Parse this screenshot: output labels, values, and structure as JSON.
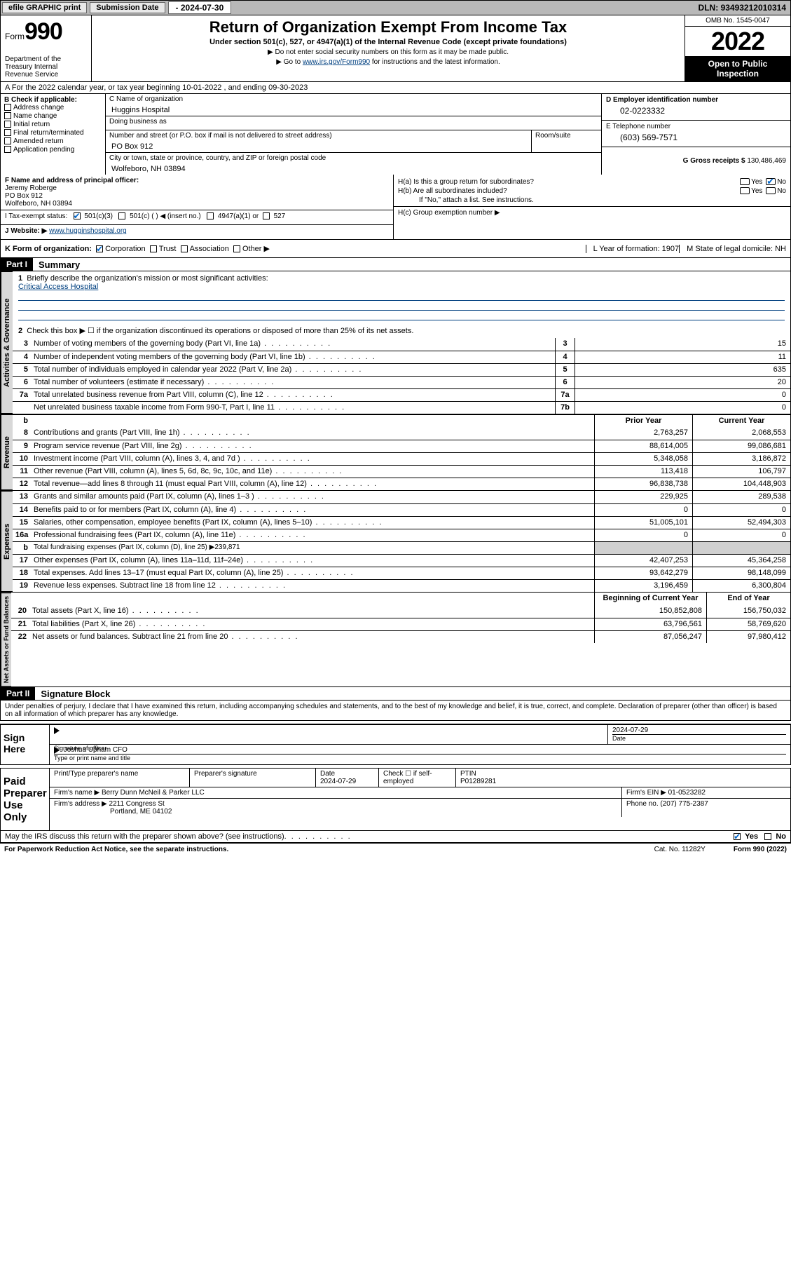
{
  "topbar": {
    "efile": "efile GRAPHIC print",
    "sub_label": "Submission Date",
    "sub_date": "- 2024-07-30",
    "dln_label": "DLN:",
    "dln": "93493212010314"
  },
  "header": {
    "form_label": "Form",
    "form_num": "990",
    "dept": "Department of the Treasury\nInternal Revenue Service",
    "title": "Return of Organization Exempt From Income Tax",
    "sub": "Under section 501(c), 527, or 4947(a)(1) of the Internal Revenue Code (except private foundations)",
    "arrow1": "▶ Do not enter social security numbers on this form as it may be made public.",
    "arrow2_pre": "▶ Go to ",
    "arrow2_link": "www.irs.gov/Form990",
    "arrow2_post": " for instructions and the latest information.",
    "omb": "OMB No. 1545-0047",
    "year": "2022",
    "open": "Open to Public Inspection"
  },
  "row_a": "A  For the 2022 calendar year, or tax year beginning 10-01-2022   , and ending 09-30-2023",
  "col_b": {
    "title": "B Check if applicable:",
    "items": [
      "Address change",
      "Name change",
      "Initial return",
      "Final return/terminated",
      "Amended return",
      "Application pending"
    ]
  },
  "col_c": {
    "name_lbl": "C Name of organization",
    "name": "Huggins Hospital",
    "dba_lbl": "Doing business as",
    "dba": "",
    "addr_lbl": "Number and street (or P.O. box if mail is not delivered to street address)",
    "room_lbl": "Room/suite",
    "addr": "PO Box 912",
    "city_lbl": "City or town, state or province, country, and ZIP or foreign postal code",
    "city": "Wolfeboro, NH  03894"
  },
  "col_d": {
    "ein_lbl": "D Employer identification number",
    "ein": "02-0223332",
    "phone_lbl": "E Telephone number",
    "phone": "(603) 569-7571",
    "gross_lbl": "G Gross receipts $",
    "gross": "130,486,469"
  },
  "row_f": {
    "f_lbl": "F Name and address of principal officer:",
    "f_name": "Jeremy Roberge",
    "f_addr1": "PO Box 912",
    "f_addr2": "Wolfeboro, NH  03894",
    "i_lbl": "I    Tax-exempt status:",
    "i_501c3": "501(c)(3)",
    "i_501c": "501(c) (  ) ◀ (insert no.)",
    "i_4947": "4947(a)(1) or",
    "i_527": "527",
    "j_lbl": "J   Website: ▶",
    "j_val": "www.hugginshospital.org"
  },
  "row_h": {
    "ha": "H(a)  Is this a group return for subordinates?",
    "hb": "H(b)  Are all subordinates included?",
    "hb_note": "If \"No,\" attach a list. See instructions.",
    "hc": "H(c)  Group exemption number ▶",
    "yes": "Yes",
    "no": "No"
  },
  "row_k": {
    "k": "K Form of organization:",
    "corp": "Corporation",
    "trust": "Trust",
    "assoc": "Association",
    "other": "Other ▶",
    "l": "L Year of formation: 1907",
    "m": "M State of legal domicile: NH"
  },
  "parts": {
    "p1": "Part I",
    "p1_title": "Summary",
    "p2": "Part II",
    "p2_title": "Signature Block"
  },
  "summary": {
    "line1": "Briefly describe the organization's mission or most significant activities:",
    "mission": "Critical Access Hospital",
    "line2": "Check this box ▶ ☐  if the organization discontinued its operations or disposed of more than 25% of its net assets.",
    "rows_gov": [
      {
        "n": "3",
        "d": "Number of voting members of the governing body (Part VI, line 1a)",
        "b": "3",
        "v": "15"
      },
      {
        "n": "4",
        "d": "Number of independent voting members of the governing body (Part VI, line 1b)",
        "b": "4",
        "v": "11"
      },
      {
        "n": "5",
        "d": "Total number of individuals employed in calendar year 2022 (Part V, line 2a)",
        "b": "5",
        "v": "635"
      },
      {
        "n": "6",
        "d": "Total number of volunteers (estimate if necessary)",
        "b": "6",
        "v": "20"
      },
      {
        "n": "7a",
        "d": "Total unrelated business revenue from Part VIII, column (C), line 12",
        "b": "7a",
        "v": "0"
      },
      {
        "n": "",
        "d": "Net unrelated business taxable income from Form 990-T, Part I, line 11",
        "b": "7b",
        "v": "0"
      }
    ],
    "hdr_prior": "Prior Year",
    "hdr_curr": "Current Year",
    "rows_rev": [
      {
        "n": "8",
        "d": "Contributions and grants (Part VIII, line 1h)",
        "p": "2,763,257",
        "c": "2,068,553"
      },
      {
        "n": "9",
        "d": "Program service revenue (Part VIII, line 2g)",
        "p": "88,614,005",
        "c": "99,086,681"
      },
      {
        "n": "10",
        "d": "Investment income (Part VIII, column (A), lines 3, 4, and 7d )",
        "p": "5,348,058",
        "c": "3,186,872"
      },
      {
        "n": "11",
        "d": "Other revenue (Part VIII, column (A), lines 5, 6d, 8c, 9c, 10c, and 11e)",
        "p": "113,418",
        "c": "106,797"
      },
      {
        "n": "12",
        "d": "Total revenue—add lines 8 through 11 (must equal Part VIII, column (A), line 12)",
        "p": "96,838,738",
        "c": "104,448,903"
      }
    ],
    "rows_exp": [
      {
        "n": "13",
        "d": "Grants and similar amounts paid (Part IX, column (A), lines 1–3 )",
        "p": "229,925",
        "c": "289,538"
      },
      {
        "n": "14",
        "d": "Benefits paid to or for members (Part IX, column (A), line 4)",
        "p": "0",
        "c": "0"
      },
      {
        "n": "15",
        "d": "Salaries, other compensation, employee benefits (Part IX, column (A), lines 5–10)",
        "p": "51,005,101",
        "c": "52,494,303"
      },
      {
        "n": "16a",
        "d": "Professional fundraising fees (Part IX, column (A), line 11e)",
        "p": "0",
        "c": "0"
      },
      {
        "n": "b",
        "d": "Total fundraising expenses (Part IX, column (D), line 25) ▶239,871",
        "shade": true
      },
      {
        "n": "17",
        "d": "Other expenses (Part IX, column (A), lines 11a–11d, 11f–24e)",
        "p": "42,407,253",
        "c": "45,364,258"
      },
      {
        "n": "18",
        "d": "Total expenses. Add lines 13–17 (must equal Part IX, column (A), line 25)",
        "p": "93,642,279",
        "c": "98,148,099"
      },
      {
        "n": "19",
        "d": "Revenue less expenses. Subtract line 18 from line 12",
        "p": "3,196,459",
        "c": "6,300,804"
      }
    ],
    "hdr_beg": "Beginning of Current Year",
    "hdr_end": "End of Year",
    "rows_net": [
      {
        "n": "20",
        "d": "Total assets (Part X, line 16)",
        "p": "150,852,808",
        "c": "156,750,032"
      },
      {
        "n": "21",
        "d": "Total liabilities (Part X, line 26)",
        "p": "63,796,561",
        "c": "58,769,620"
      },
      {
        "n": "22",
        "d": "Net assets or fund balances. Subtract line 21 from line 20",
        "p": "87,056,247",
        "c": "97,980,412"
      }
    ],
    "vtabs": {
      "gov": "Activities & Governance",
      "rev": "Revenue",
      "exp": "Expenses",
      "net": "Net Assets or Fund Balances"
    }
  },
  "sig": {
    "penalty": "Under penalties of perjury, I declare that I have examined this return, including accompanying schedules and statements, and to the best of my knowledge and belief, it is true, correct, and complete. Declaration of preparer (other than officer) is based on all information of which preparer has any knowledge.",
    "sign_here": "Sign Here",
    "sig_officer": "Signature of officer",
    "date_lbl": "Date",
    "sig_date": "2024-07-29",
    "officer_name": "Joshua Upham CFO",
    "type_name": "Type or print name and title",
    "paid": "Paid Preparer Use Only",
    "prep_name_lbl": "Print/Type preparer's name",
    "prep_sig_lbl": "Preparer's signature",
    "prep_date_lbl": "Date",
    "prep_date": "2024-07-29",
    "check_self": "Check ☐ if self-employed",
    "ptin_lbl": "PTIN",
    "ptin": "P01289281",
    "firm_name_lbl": "Firm's name   ▶",
    "firm_name": "Berry Dunn McNeil & Parker LLC",
    "firm_ein_lbl": "Firm's EIN ▶",
    "firm_ein": "01-0523282",
    "firm_addr_lbl": "Firm's address ▶",
    "firm_addr1": "2211 Congress St",
    "firm_addr2": "Portland, ME  04102",
    "firm_phone_lbl": "Phone no.",
    "firm_phone": "(207) 775-2387",
    "may_irs": "May the IRS discuss this return with the preparer shown above? (see instructions)"
  },
  "footer": {
    "left": "For Paperwork Reduction Act Notice, see the separate instructions.",
    "mid": "Cat. No. 11282Y",
    "right": "Form 990 (2022)"
  },
  "colors": {
    "link": "#004080",
    "check": "#0066cc",
    "shade": "#d0d0d0",
    "vtab_bg": "#d8d8d8",
    "topbar_bg": "#b8b8b8"
  }
}
